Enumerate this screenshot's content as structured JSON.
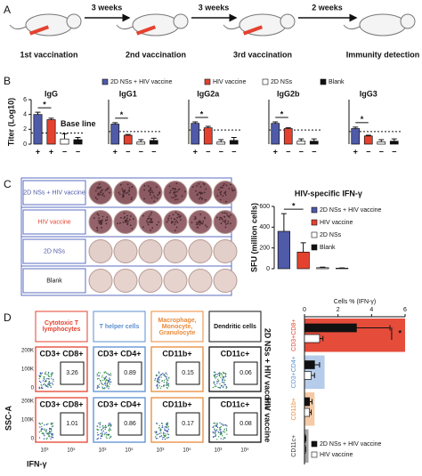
{
  "panel_labels": [
    "A",
    "B",
    "C",
    "D"
  ],
  "timeline": {
    "intervals": [
      "3 weeks",
      "3 weeks",
      "2 weeks"
    ],
    "steps": [
      "1st vaccination",
      "2nd vaccination",
      "3rd vaccination",
      "Immunity detection"
    ]
  },
  "groups": [
    {
      "name": "2D NSs + HIV vaccine",
      "color": "#4f5aa8"
    },
    {
      "name": "HIV vaccine",
      "color": "#e4422f"
    },
    {
      "name": "2D NSs",
      "color": "#ffffff"
    },
    {
      "name": "Blank",
      "color": "#111111"
    }
  ],
  "chart_data": [
    {
      "type": "bar",
      "title": "IgG",
      "y_label": "Titer (Log10)",
      "categories": [
        "+",
        "+",
        "−",
        "−"
      ],
      "values": [
        4.0,
        3.3,
        0.7,
        0.6
      ],
      "errors": [
        0.3,
        0.2,
        0.7,
        0.3
      ],
      "colors": [
        "#4f5aa8",
        "#e4422f",
        "#ffffff",
        "#111111"
      ],
      "ylim": [
        0,
        6
      ],
      "yticks": [
        0,
        2,
        4,
        6
      ],
      "baseline": 1.5,
      "baseline_label": "Base line",
      "significance": "*"
    },
    {
      "type": "bar",
      "title": "IgG1",
      "categories": [
        "+",
        "−",
        "−",
        "−"
      ],
      "values": [
        2.7,
        1.2,
        0.3,
        0.5
      ],
      "errors": [
        0.2,
        0.1,
        0.3,
        0.3
      ],
      "colors": [
        "#4f5aa8",
        "#e4422f",
        "#ffffff",
        "#111111"
      ],
      "ylim": [
        0,
        6
      ],
      "baseline": 1.7,
      "significance": "*"
    },
    {
      "type": "bar",
      "title": "IgG2a",
      "categories": [
        "+",
        "−",
        "−",
        "−"
      ],
      "values": [
        2.8,
        2.2,
        0.3,
        0.5
      ],
      "errors": [
        0.2,
        0.2,
        0.3,
        0.4
      ],
      "colors": [
        "#4f5aa8",
        "#e4422f",
        "#ffffff",
        "#111111"
      ],
      "ylim": [
        0,
        6
      ],
      "baseline": 1.9,
      "significance": "*"
    },
    {
      "type": "bar",
      "title": "IgG2b",
      "categories": [
        "+",
        "−",
        "−",
        "−"
      ],
      "values": [
        2.8,
        2.1,
        0.4,
        0.4
      ],
      "errors": [
        0.2,
        0.1,
        0.3,
        0.3
      ],
      "colors": [
        "#4f5aa8",
        "#e4422f",
        "#ffffff",
        "#111111"
      ],
      "ylim": [
        0,
        6
      ],
      "baseline": 1.9,
      "significance": "*"
    },
    {
      "type": "bar",
      "title": "IgG3",
      "categories": [
        "+",
        "−",
        "−",
        "−"
      ],
      "values": [
        2.1,
        1.1,
        0.3,
        0.4
      ],
      "errors": [
        0.2,
        0.1,
        0.3,
        0.3
      ],
      "colors": [
        "#4f5aa8",
        "#e4422f",
        "#ffffff",
        "#111111"
      ],
      "ylim": [
        0,
        6
      ],
      "baseline": 1.7,
      "significance": "*"
    },
    {
      "type": "bar",
      "title": "HIV-specific IFN-γ",
      "y_label": "SFU (million cells)",
      "categories": [
        null,
        null,
        null,
        null
      ],
      "values": [
        360,
        160,
        10,
        5
      ],
      "errors": [
        170,
        90,
        5,
        3
      ],
      "colors": [
        "#4f5aa8",
        "#e4422f",
        "#ffffff",
        "#111111"
      ],
      "ylim": [
        0,
        600
      ],
      "yticks": [
        0,
        200,
        400,
        600
      ],
      "significance": "*"
    },
    {
      "type": "hbar",
      "x_label": "Cells % (IFN-γ)",
      "categories": [
        "CD3+CD8+",
        "CD3+CD4+",
        "CD11b+",
        "CD11c+"
      ],
      "category_colors": [
        "#e4422f",
        "#5b8fd1",
        "#e88a3a",
        "#333333"
      ],
      "series": [
        {
          "name": "2D NSs + HIV vaccine",
          "color": "#111111",
          "values": [
            3.1,
            0.6,
            0.3,
            0.05
          ],
          "errors": [
            2.0,
            0.3,
            0.15,
            0.03
          ]
        },
        {
          "name": "HIV vaccine",
          "color": "#ffffff",
          "values": [
            0.9,
            0.4,
            0.3,
            0.05
          ],
          "errors": [
            0.2,
            0.2,
            0.1,
            0.02
          ]
        }
      ],
      "xlim": [
        0,
        6
      ],
      "xticks": [
        0,
        2,
        4,
        6
      ],
      "significance": "*"
    }
  ],
  "wells": {
    "rows": [
      "2D NSs + HIV vaccine",
      "HIV vaccine",
      "2D NSs",
      "Blank"
    ],
    "text_colors": [
      "#4f5aa8",
      "#e4422f",
      "#4f5aa8",
      "#111111"
    ],
    "well_colors": [
      "#8c5a62",
      "#93626a",
      "#e3cfc9",
      "#e6d3cd"
    ]
  },
  "flow": {
    "columns": [
      {
        "title": "Cytotoxic T lymphocytes",
        "color": "#e4422f",
        "gate": "CD3+ CD8+"
      },
      {
        "title": "T helper cells",
        "color": "#5b8fd1",
        "gate": "CD3+ CD4+"
      },
      {
        "title": "Macrophage, Monocyte, Granulocyte",
        "color": "#e88a3a",
        "gate": "CD11b+"
      },
      {
        "title": "Dendritic cells",
        "color": "#111111",
        "gate": "CD11c+"
      }
    ],
    "rows": [
      {
        "name": "2D NSs + HIV vaccine",
        "values": [
          3.26,
          0.89,
          0.15,
          0.06
        ]
      },
      {
        "name": "HIV vaccine",
        "values": [
          1.01,
          0.86,
          0.17,
          0.08
        ]
      }
    ],
    "y_label": "SSC-A",
    "x_label": "IFN-γ",
    "yticks": [
      "200K",
      "100K",
      "0"
    ],
    "xticks": [
      "10³",
      "10⁵"
    ]
  }
}
